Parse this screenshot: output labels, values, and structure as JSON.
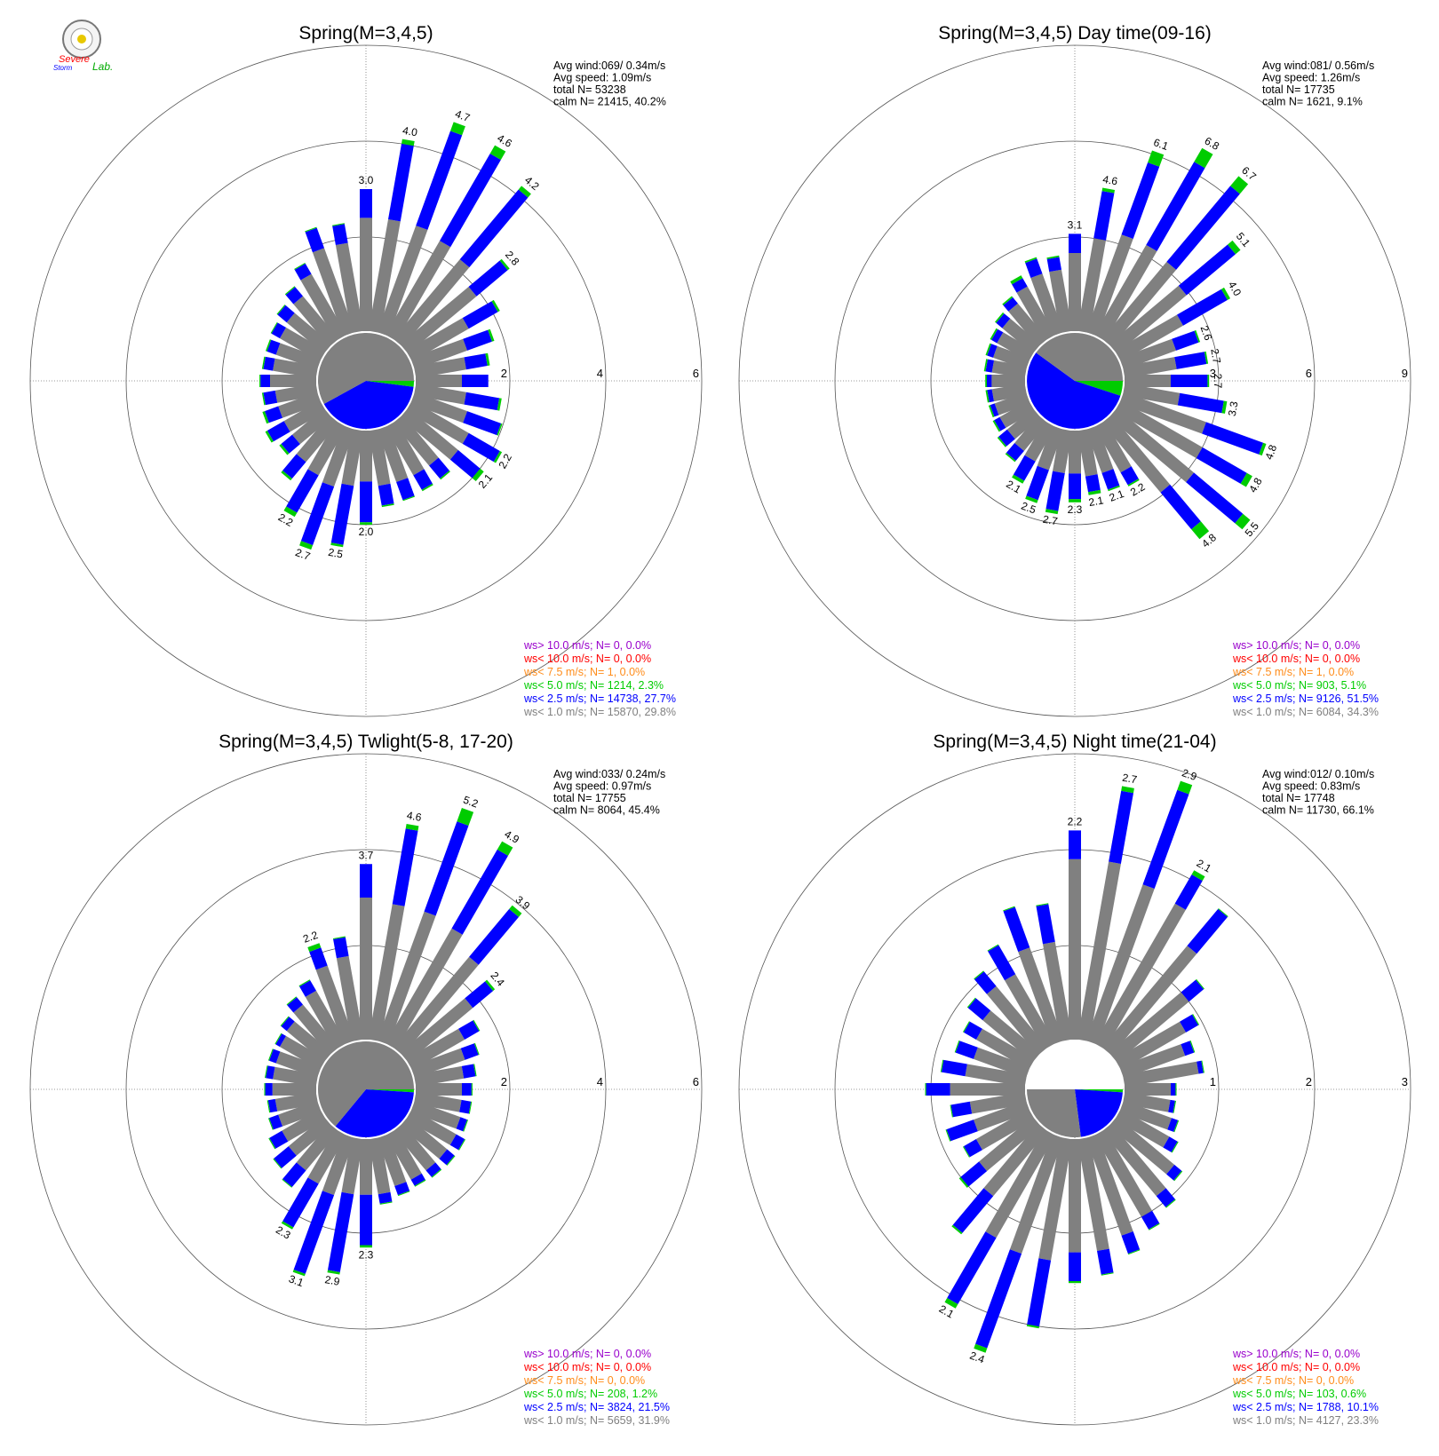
{
  "logo": {
    "text_top": "Severe",
    "text_bottom": "Storm",
    "text_suffix": "Lab."
  },
  "colors": {
    "lt1": "#808080",
    "lt2_5": "#0000ff",
    "lt5": "#00cc00",
    "lt7_5": "#ff8c1a",
    "lt10": "#ff0000",
    "gt10": "#9900cc",
    "grid": "#808080"
  },
  "chart_data": [
    {
      "type": "polar-bar",
      "title": "Spring(M=3,4,5)",
      "info": [
        "Avg wind:069/ 0.34m/s",
        "Avg speed: 1.09m/s",
        "total N=      53238",
        "calm N=  21415,  40.2%"
      ],
      "rmax": 6,
      "ticks": [
        "2",
        "4",
        "6"
      ],
      "legend": [
        {
          "text": "ws> 10.0 m/s; N=      0,  0.0%",
          "color": "gt10"
        },
        {
          "text": "ws< 10.0 m/s; N=      0,  0.0%",
          "color": "lt10"
        },
        {
          "text": "ws<  7.5 m/s; N=      1,  0.0%",
          "color": "lt7_5"
        },
        {
          "text": "ws<  5.0 m/s; N=   1214,  2.3%",
          "color": "lt5"
        },
        {
          "text": "ws<  2.5 m/s; N= 14738, 27.7%",
          "color": "lt2_5"
        },
        {
          "text": "ws<  1.0 m/s; N= 15870, 29.8%",
          "color": "lt1"
        }
      ],
      "calm_pie": [
        [
          "lt5",
          0.02
        ],
        [
          "lt2_5",
          0.4
        ],
        [
          "lt1",
          0.58
        ]
      ],
      "bins": [
        [
          0,
          2.4,
          3.0,
          3.0,
          3.0
        ],
        [
          10,
          2.4,
          4.0,
          4.1,
          4.0
        ],
        [
          20,
          2.4,
          4.5,
          4.7,
          4.7
        ],
        [
          30,
          2.3,
          4.4,
          4.6,
          4.6
        ],
        [
          40,
          2.2,
          4.1,
          4.2,
          4.2
        ],
        [
          50,
          1.9,
          2.75,
          2.8,
          2.8
        ],
        [
          60,
          1.4,
          2.1,
          2.15,
          null
        ],
        [
          70,
          1.2,
          1.75,
          1.8,
          null
        ],
        [
          80,
          1.1,
          1.55,
          1.6,
          null
        ],
        [
          90,
          1.0,
          1.55,
          1.55,
          null
        ],
        [
          100,
          1.1,
          1.8,
          1.85,
          null
        ],
        [
          110,
          1.2,
          1.95,
          1.98,
          null
        ],
        [
          120,
          1.4,
          2.15,
          2.2,
          2.2
        ],
        [
          130,
          1.4,
          2.0,
          2.1,
          2.1
        ],
        [
          140,
          1.2,
          1.55,
          1.58,
          null
        ],
        [
          150,
          1.2,
          1.55,
          1.58,
          null
        ],
        [
          160,
          1.2,
          1.6,
          1.62,
          null
        ],
        [
          170,
          1.2,
          1.62,
          1.65,
          null
        ],
        [
          180,
          1.1,
          1.95,
          2.0,
          2.0
        ],
        [
          190,
          1.2,
          2.45,
          2.5,
          2.5
        ],
        [
          200,
          1.3,
          2.6,
          2.7,
          2.7
        ],
        [
          210,
          1.2,
          2.1,
          2.2,
          2.2
        ],
        [
          220,
          1.1,
          1.55,
          1.6,
          null
        ],
        [
          230,
          0.9,
          1.2,
          1.25,
          null
        ],
        [
          240,
          0.9,
          1.3,
          1.35,
          null
        ],
        [
          250,
          0.9,
          1.2,
          1.25,
          null
        ],
        [
          260,
          0.9,
          1.15,
          1.18,
          null
        ],
        [
          270,
          1.0,
          1.2,
          1.22,
          null
        ],
        [
          280,
          0.95,
          1.15,
          1.18,
          null
        ],
        [
          290,
          0.95,
          1.15,
          1.18,
          null
        ],
        [
          300,
          1.0,
          1.2,
          1.22,
          null
        ],
        [
          310,
          1.05,
          1.3,
          1.32,
          null
        ],
        [
          320,
          1.2,
          1.45,
          1.47,
          null
        ],
        [
          330,
          1.5,
          1.75,
          1.77,
          null
        ],
        [
          340,
          1.9,
          2.35,
          2.37,
          null
        ],
        [
          350,
          1.9,
          2.3,
          2.32,
          null
        ]
      ]
    },
    {
      "type": "polar-bar",
      "title": "Spring(M=3,4,5) Day time(09-16)",
      "info": [
        "Avg wind:081/ 0.56m/s",
        "Avg speed: 1.26m/s",
        "total N=      17735",
        "calm N=   1621,   9.1%"
      ],
      "rmax": 9,
      "ticks": [
        "3",
        "6",
        "9"
      ],
      "legend": [
        {
          "text": "ws> 10.0 m/s; N=      0,  0.0%",
          "color": "gt10"
        },
        {
          "text": "ws< 10.0 m/s; N=      0,  0.0%",
          "color": "lt10"
        },
        {
          "text": "ws<  7.5 m/s; N=      1,  0.0%",
          "color": "lt7_5"
        },
        {
          "text": "ws<  5.0 m/s; N=    903,  5.1%",
          "color": "lt5"
        },
        {
          "text": "ws<  2.5 m/s; N=  9126, 51.5%",
          "color": "lt2_5"
        },
        {
          "text": "ws<  1.0 m/s; N=  6084, 34.3%",
          "color": "lt1"
        }
      ],
      "calm_pie": [
        [
          "lt5",
          0.05
        ],
        [
          "lt2_5",
          0.55
        ],
        [
          "lt1",
          0.4
        ]
      ],
      "bins": [
        [
          0,
          2.5,
          3.1,
          3.1,
          3.1
        ],
        [
          10,
          3.0,
          4.5,
          4.6,
          4.6
        ],
        [
          20,
          3.3,
          5.7,
          6.1,
          6.1
        ],
        [
          30,
          3.3,
          6.3,
          6.8,
          6.8
        ],
        [
          40,
          3.2,
          6.3,
          6.7,
          6.7
        ],
        [
          50,
          2.9,
          4.9,
          5.1,
          5.1
        ],
        [
          60,
          2.3,
          3.9,
          4.0,
          4.0
        ],
        [
          70,
          1.8,
          2.55,
          2.6,
          2.6
        ],
        [
          80,
          1.7,
          2.65,
          2.7,
          2.7
        ],
        [
          90,
          1.5,
          2.65,
          2.7,
          2.7
        ],
        [
          100,
          1.8,
          3.2,
          3.3,
          3.3
        ],
        [
          110,
          2.8,
          4.7,
          4.8,
          4.8
        ],
        [
          120,
          3.0,
          4.6,
          4.8,
          4.8
        ],
        [
          130,
          3.2,
          5.2,
          5.5,
          5.5
        ],
        [
          140,
          2.9,
          4.4,
          4.8,
          4.8
        ],
        [
          150,
          1.7,
          2.15,
          2.2,
          2.2
        ],
        [
          160,
          1.5,
          2.05,
          2.1,
          2.1
        ],
        [
          170,
          1.5,
          2.0,
          2.1,
          2.1
        ],
        [
          180,
          1.4,
          2.2,
          2.3,
          2.3
        ],
        [
          190,
          1.4,
          2.6,
          2.7,
          2.7
        ],
        [
          200,
          1.4,
          2.4,
          2.5,
          2.5
        ],
        [
          210,
          1.3,
          2.0,
          2.1,
          2.1
        ],
        [
          220,
          1.2,
          1.6,
          1.65,
          null
        ],
        [
          230,
          1.1,
          1.45,
          1.5,
          null
        ],
        [
          240,
          1.1,
          1.3,
          1.35,
          null
        ],
        [
          250,
          1.1,
          1.25,
          1.3,
          null
        ],
        [
          260,
          1.1,
          1.25,
          1.3,
          null
        ],
        [
          270,
          1.1,
          1.25,
          1.3,
          null
        ],
        [
          280,
          1.1,
          1.3,
          1.35,
          null
        ],
        [
          290,
          1.15,
          1.35,
          1.4,
          null
        ],
        [
          300,
          1.2,
          1.4,
          1.45,
          null
        ],
        [
          310,
          1.3,
          1.55,
          1.6,
          null
        ],
        [
          320,
          1.5,
          1.75,
          1.8,
          null
        ],
        [
          330,
          1.8,
          2.1,
          2.2,
          null
        ],
        [
          340,
          2.0,
          2.5,
          2.55,
          null
        ],
        [
          350,
          2.0,
          2.4,
          2.45,
          null
        ]
      ]
    },
    {
      "type": "polar-bar",
      "title": "Spring(M=3,4,5) Twlight(5-8, 17-20)",
      "info": [
        "Avg wind:033/ 0.24m/s",
        "Avg speed: 0.97m/s",
        "total N=      17755",
        "calm N=   8064,  45.4%"
      ],
      "rmax": 6,
      "ticks": [
        "2",
        "4",
        "6"
      ],
      "legend": [
        {
          "text": "ws> 10.0 m/s; N=      0,  0.0%",
          "color": "gt10"
        },
        {
          "text": "ws< 10.0 m/s; N=      0,  0.0%",
          "color": "lt10"
        },
        {
          "text": "ws<  7.5 m/s; N=      0,  0.0%",
          "color": "lt7_5"
        },
        {
          "text": "ws<  5.0 m/s; N=    208,  1.2%",
          "color": "lt5"
        },
        {
          "text": "ws<  2.5 m/s; N=  3824, 21.5%",
          "color": "lt2_5"
        },
        {
          "text": "ws<  1.0 m/s; N=  5659, 31.9%",
          "color": "lt1"
        }
      ],
      "calm_pie": [
        [
          "lt5",
          0.01
        ],
        [
          "lt2_5",
          0.35
        ],
        [
          "lt1",
          0.64
        ]
      ],
      "bins": [
        [
          0,
          3.0,
          3.7,
          3.7,
          3.7
        ],
        [
          10,
          2.9,
          4.5,
          4.6,
          4.6
        ],
        [
          20,
          2.9,
          4.9,
          5.2,
          5.2
        ],
        [
          30,
          2.8,
          4.7,
          4.9,
          4.9
        ],
        [
          40,
          2.5,
          3.8,
          3.9,
          3.9
        ],
        [
          50,
          1.8,
          2.35,
          2.4,
          2.4
        ],
        [
          60,
          1.3,
          1.65,
          1.67,
          null
        ],
        [
          70,
          1.15,
          1.45,
          1.47,
          null
        ],
        [
          80,
          1.05,
          1.3,
          1.32,
          null
        ],
        [
          90,
          1.0,
          1.2,
          1.22,
          null
        ],
        [
          100,
          1.0,
          1.2,
          1.22,
          null
        ],
        [
          110,
          1.05,
          1.2,
          1.22,
          null
        ],
        [
          120,
          1.1,
          1.3,
          1.32,
          null
        ],
        [
          130,
          1.1,
          1.3,
          1.32,
          null
        ],
        [
          140,
          1.1,
          1.28,
          1.3,
          null
        ],
        [
          150,
          1.1,
          1.25,
          1.27,
          null
        ],
        [
          160,
          1.1,
          1.3,
          1.32,
          null
        ],
        [
          170,
          1.2,
          1.4,
          1.42,
          null
        ],
        [
          180,
          1.2,
          2.25,
          2.3,
          2.3
        ],
        [
          190,
          1.2,
          2.85,
          2.9,
          2.9
        ],
        [
          200,
          1.3,
          3.05,
          3.1,
          3.1
        ],
        [
          210,
          1.2,
          2.25,
          2.3,
          2.3
        ],
        [
          220,
          1.1,
          1.55,
          1.57,
          null
        ],
        [
          230,
          1.0,
          1.4,
          1.42,
          null
        ],
        [
          240,
          0.95,
          1.25,
          1.27,
          null
        ],
        [
          250,
          0.9,
          1.1,
          1.12,
          null
        ],
        [
          260,
          0.9,
          1.05,
          1.07,
          null
        ],
        [
          270,
          0.95,
          1.1,
          1.12,
          null
        ],
        [
          280,
          0.95,
          1.1,
          1.12,
          null
        ],
        [
          290,
          0.95,
          1.1,
          1.12,
          null
        ],
        [
          300,
          1.0,
          1.1,
          1.12,
          null
        ],
        [
          310,
          1.05,
          1.2,
          1.22,
          null
        ],
        [
          320,
          1.2,
          1.4,
          1.42,
          null
        ],
        [
          330,
          1.3,
          1.55,
          1.57,
          null
        ],
        [
          340,
          1.7,
          2.1,
          2.2,
          2.2
        ],
        [
          350,
          1.8,
          2.2,
          2.22,
          null
        ]
      ]
    },
    {
      "type": "polar-bar",
      "title": "Spring(M=3,4,5) Night time(21-04)",
      "info": [
        "Avg wind:012/ 0.10m/s",
        "Avg speed: 0.83m/s",
        "total N=      17748",
        "calm N=  11730,  66.1%"
      ],
      "rmax": 3,
      "ticks": [
        "1",
        "2",
        "3"
      ],
      "legend": [
        {
          "text": "ws> 10.0 m/s; N=      0,  0.0%",
          "color": "gt10"
        },
        {
          "text": "ws< 10.0 m/s; N=      0,  0.0%",
          "color": "lt10"
        },
        {
          "text": "ws<  7.5 m/s; N=      0,  0.0%",
          "color": "lt7_5"
        },
        {
          "text": "ws<  5.0 m/s; N=    103,  0.6%",
          "color": "lt5"
        },
        {
          "text": "ws<  2.5 m/s; N=  1788, 10.1%",
          "color": "lt2_5"
        },
        {
          "text": "ws<  1.0 m/s; N=  4127, 23.3%",
          "color": "lt1"
        }
      ],
      "calm_pie": [
        [
          "lt5",
          0.01
        ],
        [
          "lt2_5",
          0.22
        ],
        [
          "lt1",
          0.27
        ],
        [
          "blank",
          0.5
        ]
      ],
      "bins": [
        [
          0,
          1.9,
          2.2,
          2.2,
          2.2
        ],
        [
          10,
          1.9,
          2.65,
          2.7,
          2.7
        ],
        [
          20,
          1.75,
          2.8,
          2.9,
          2.9
        ],
        [
          30,
          1.7,
          2.05,
          2.1,
          2.1
        ],
        [
          40,
          1.4,
          1.9,
          1.91,
          null
        ],
        [
          50,
          1.0,
          1.2,
          1.21,
          null
        ],
        [
          60,
          0.8,
          0.95,
          0.96,
          null
        ],
        [
          70,
          0.7,
          0.8,
          0.81,
          null
        ],
        [
          80,
          0.8,
          0.85,
          0.86,
          null
        ],
        [
          90,
          0.5,
          0.55,
          0.56,
          null
        ],
        [
          100,
          0.5,
          0.55,
          0.56,
          null
        ],
        [
          110,
          0.55,
          0.62,
          0.63,
          null
        ],
        [
          120,
          0.6,
          0.7,
          0.71,
          null
        ],
        [
          130,
          0.8,
          0.9,
          0.91,
          null
        ],
        [
          140,
          0.9,
          1.05,
          1.06,
          null
        ],
        [
          150,
          1.0,
          1.15,
          1.16,
          null
        ],
        [
          160,
          1.1,
          1.3,
          1.31,
          null
        ],
        [
          170,
          1.2,
          1.45,
          1.46,
          null
        ],
        [
          180,
          1.2,
          1.5,
          1.52,
          null
        ],
        [
          190,
          1.3,
          2.0,
          2.02,
          null
        ],
        [
          200,
          1.3,
          2.35,
          2.4,
          2.4
        ],
        [
          210,
          1.25,
          2.05,
          2.1,
          2.1
        ],
        [
          220,
          0.9,
          1.4,
          1.42,
          null
        ],
        [
          230,
          0.75,
          1.0,
          1.02,
          null
        ],
        [
          240,
          0.65,
          0.8,
          0.81,
          null
        ],
        [
          250,
          0.6,
          0.9,
          0.91,
          null
        ],
        [
          260,
          0.6,
          0.8,
          0.81,
          null
        ],
        [
          270,
          0.8,
          1.05,
          1.06,
          null
        ],
        [
          280,
          0.65,
          0.9,
          0.91,
          null
        ],
        [
          290,
          0.6,
          0.8,
          0.81,
          null
        ],
        [
          300,
          0.65,
          0.8,
          0.81,
          null
        ],
        [
          310,
          0.7,
          0.9,
          0.91,
          null
        ],
        [
          320,
          0.85,
          1.05,
          1.06,
          null
        ],
        [
          330,
          0.85,
          1.2,
          1.21,
          null
        ],
        [
          340,
          1.05,
          1.5,
          1.51,
          null
        ],
        [
          350,
          1.05,
          1.45,
          1.46,
          null
        ]
      ]
    }
  ]
}
